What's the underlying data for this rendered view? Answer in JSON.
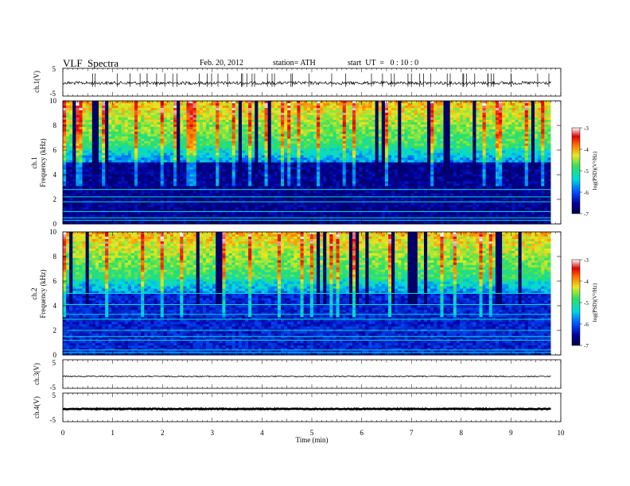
{
  "header": {
    "title": "VLF  Spectra",
    "date": "Feb. 20, 2012",
    "station": "station= ATH",
    "start": "start  UT  =   0 : 10 : 0"
  },
  "chart_data": [
    {
      "type": "line",
      "panel": "ch1-waveform",
      "ylabel": "ch.1(V)",
      "ylim": [
        -5,
        5
      ],
      "yticks": [
        "5",
        "-5"
      ],
      "xlim": [
        0,
        10
      ],
      "series": [
        {
          "values_description_free": true,
          "baseline": -0.3,
          "spike_times_min": [
            0.6,
            0.65,
            1.35,
            2.9,
            3.8,
            3.85,
            4.25,
            5.4,
            7.0,
            8.05,
            8.6,
            9.0
          ]
        }
      ]
    },
    {
      "type": "heatmap",
      "panel": "ch1-spectrogram",
      "ylabel": "ch.1\nFrequency  (kHz)",
      "ylabel_lines": [
        "ch.1",
        "Frequency  (kHz)"
      ],
      "ylim": [
        0,
        10
      ],
      "yticks": [
        "0",
        "2",
        "4",
        "6",
        "8",
        "10"
      ],
      "xlim": [
        0,
        10
      ],
      "data_end_min": 9.8,
      "colorbar": {
        "label": "log(PSD)(V²/Hz)",
        "range": [
          -7,
          -3
        ],
        "ticks": [
          "-3",
          "-4",
          "-5",
          "-6",
          "-7"
        ]
      }
    },
    {
      "type": "heatmap",
      "panel": "ch2-spectrogram",
      "ylabel_lines": [
        "ch.2",
        "Frequency  (kHz)"
      ],
      "ylim": [
        0,
        10
      ],
      "yticks": [
        "0",
        "2",
        "4",
        "6",
        "8",
        "10"
      ],
      "xlim": [
        0,
        10
      ],
      "data_end_min": 9.8,
      "colorbar": {
        "label": "log(PSD)(V²/Hz)",
        "range": [
          -7,
          -3
        ],
        "ticks": [
          "-3",
          "-4",
          "-5",
          "-6",
          "-7"
        ]
      }
    },
    {
      "type": "line",
      "panel": "ch3-waveform",
      "ylabel": "ch.3(V)",
      "ylim": [
        -5,
        5
      ],
      "yticks": [
        "5",
        "-5"
      ],
      "xlim": [
        0,
        10
      ]
    },
    {
      "type": "line",
      "panel": "ch4-waveform",
      "ylabel": "ch.4(V)",
      "ylim": [
        -5,
        5
      ],
      "yticks": [
        "5",
        "-5"
      ],
      "xlim": [
        0,
        10
      ],
      "xlabel": "Time  (min)",
      "xticks": [
        "0",
        "1",
        "2",
        "3",
        "4",
        "5",
        "6",
        "7",
        "8",
        "9",
        "10"
      ]
    }
  ],
  "colors": {
    "scale": [
      "#00004a",
      "#0000c8",
      "#0080ff",
      "#00e0e0",
      "#30e060",
      "#e0e820",
      "#ff8000",
      "#e00000",
      "#ffffff"
    ]
  }
}
